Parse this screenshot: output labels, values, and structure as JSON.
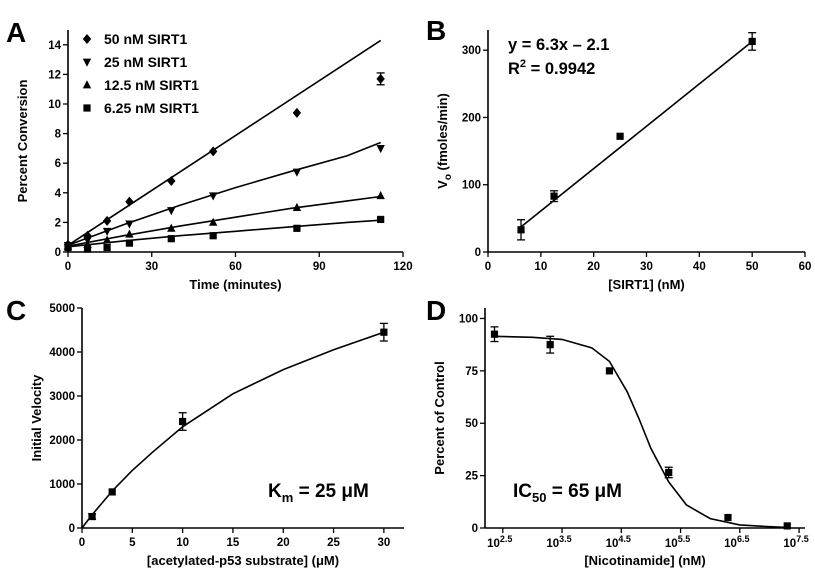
{
  "panels": {
    "A": {
      "label": "A"
    },
    "B": {
      "label": "B",
      "equation": "y = 6.3x – 2.1",
      "r2_prefix": "R",
      "r2_sup": "2",
      "r2_value": " = 0.9942"
    },
    "C": {
      "label": "C",
      "km_prefix": "K",
      "km_sub": "m",
      "km_value": " = 25 μM"
    },
    "D": {
      "label": "D",
      "ic_prefix": "IC",
      "ic_sub": "50",
      "ic_value": " = 65 μM"
    }
  },
  "chart_data": [
    {
      "panel": "A",
      "type": "scatter",
      "xlabel": "Time (minutes)",
      "ylabel": "Percent Conversion",
      "xlim": [
        0,
        120
      ],
      "ylim": [
        0,
        15
      ],
      "xticks": [
        0,
        30,
        60,
        90,
        120
      ],
      "yticks": [
        0,
        2,
        4,
        6,
        8,
        10,
        12,
        14
      ],
      "legend": "top-left",
      "series": [
        {
          "name": "50 nM SIRT1",
          "marker": "diamond",
          "fit": "linear",
          "points": [
            [
              0,
              0.5
            ],
            [
              7,
              1.1
            ],
            [
              14,
              2.1
            ],
            [
              22,
              3.4
            ],
            [
              37,
              4.8
            ],
            [
              52,
              6.8
            ],
            [
              82,
              9.4
            ],
            [
              112,
              11.7
            ]
          ],
          "errors": [
            0,
            0,
            0,
            0,
            0,
            0,
            0,
            0.4
          ],
          "fit_line": [
            [
              0,
              0.45
            ],
            [
              112,
              14.3
            ]
          ]
        },
        {
          "name": "25 nM SIRT1",
          "marker": "triangle-down",
          "fit": "curve",
          "points": [
            [
              0,
              0.45
            ],
            [
              7,
              0.8
            ],
            [
              14,
              1.4
            ],
            [
              22,
              1.9
            ],
            [
              37,
              2.8
            ],
            [
              52,
              3.8
            ],
            [
              82,
              5.4
            ],
            [
              112,
              7.0
            ]
          ],
          "errors": [
            0,
            0,
            0,
            0,
            0,
            0,
            0,
            0
          ],
          "fit_line": [
            [
              0,
              0.45
            ],
            [
              20,
              1.85
            ],
            [
              40,
              3.15
            ],
            [
              60,
              4.35
            ],
            [
              80,
              5.45
            ],
            [
              100,
              6.5
            ],
            [
              112,
              7.4
            ]
          ]
        },
        {
          "name": "12.5 nM SIRT1",
          "marker": "triangle-up",
          "fit": "curve",
          "points": [
            [
              0,
              0.4
            ],
            [
              7,
              0.5
            ],
            [
              14,
              0.8
            ],
            [
              22,
              1.2
            ],
            [
              37,
              1.6
            ],
            [
              52,
              2.0
            ],
            [
              82,
              3.0
            ],
            [
              112,
              3.8
            ]
          ],
          "errors": [
            0,
            0,
            0,
            0,
            0,
            0,
            0,
            0
          ],
          "fit_line": [
            [
              0,
              0.4
            ],
            [
              20,
              1.1
            ],
            [
              40,
              1.75
            ],
            [
              60,
              2.35
            ],
            [
              80,
              2.95
            ],
            [
              100,
              3.45
            ],
            [
              112,
              3.75
            ]
          ]
        },
        {
          "name": "6.25 nM SIRT1",
          "marker": "square",
          "fit": "curve",
          "points": [
            [
              0,
              0.3
            ],
            [
              7,
              0.2
            ],
            [
              14,
              0.3
            ],
            [
              22,
              0.6
            ],
            [
              37,
              0.9
            ],
            [
              52,
              1.1
            ],
            [
              82,
              1.6
            ],
            [
              112,
              2.2
            ]
          ],
          "errors": [
            0,
            0,
            0,
            0,
            0,
            0,
            0,
            0
          ],
          "fit_line": [
            [
              0,
              0.35
            ],
            [
              20,
              0.75
            ],
            [
              40,
              1.1
            ],
            [
              60,
              1.4
            ],
            [
              80,
              1.7
            ],
            [
              100,
              2.0
            ],
            [
              112,
              2.15
            ]
          ]
        }
      ]
    },
    {
      "panel": "B",
      "type": "scatter",
      "xlabel": "[SIRT1] (nM)",
      "ylabel": "Vₒ (fmoles/min)",
      "ylabel_main": "V",
      "ylabel_sub": "o",
      "ylabel_rest": " (fmoles/min)",
      "xlim": [
        0,
        60
      ],
      "ylim": [
        0,
        330
      ],
      "xticks": [
        0,
        10,
        20,
        30,
        40,
        50,
        60
      ],
      "yticks": [
        0,
        100,
        200,
        300
      ],
      "series": [
        {
          "name": "",
          "marker": "square",
          "fit": "linear",
          "points": [
            [
              6.25,
              33
            ],
            [
              12.5,
              83
            ],
            [
              25,
              172
            ],
            [
              50,
              313
            ]
          ],
          "errors": [
            15,
            8,
            0,
            13
          ],
          "fit_line": [
            [
              6.25,
              37.3
            ],
            [
              50,
              312.9
            ]
          ]
        }
      ]
    },
    {
      "panel": "C",
      "type": "scatter",
      "xlabel": "[acetylated-p53 substrate] (μM)",
      "ylabel": "Initial Velocity",
      "xlim": [
        0,
        32
      ],
      "ylim": [
        0,
        5000
      ],
      "xticks": [
        0,
        5,
        10,
        15,
        20,
        25,
        30
      ],
      "yticks": [
        0,
        1000,
        2000,
        3000,
        4000,
        5000
      ],
      "series": [
        {
          "name": "",
          "marker": "square",
          "fit": "michaelis-menten",
          "points": [
            [
              1,
              260
            ],
            [
              3,
              820
            ],
            [
              10,
              2420
            ],
            [
              30,
              4450
            ]
          ],
          "errors": [
            60,
            0,
            200,
            200
          ],
          "fit_line": [
            [
              0,
              0
            ],
            [
              1,
              300
            ],
            [
              3,
              840
            ],
            [
              5,
              1310
            ],
            [
              7,
              1720
            ],
            [
              10,
              2300
            ],
            [
              15,
              3050
            ],
            [
              20,
              3600
            ],
            [
              25,
              4050
            ],
            [
              30,
              4450
            ]
          ]
        }
      ]
    },
    {
      "panel": "D",
      "type": "scatter",
      "xlabel": "[Nicotinamide] (nM)",
      "ylabel": "Percent of Control",
      "xscale": "log10",
      "xlim_log": [
        2.2,
        7.6
      ],
      "ylim": [
        0,
        105
      ],
      "xtick_base": "10",
      "xtick_exponents": [
        "2.5",
        "3.5",
        "4.5",
        "5.5",
        "6.5",
        "7.5"
      ],
      "yticks": [
        0,
        25,
        50,
        75,
        100
      ],
      "series": [
        {
          "name": "",
          "marker": "square",
          "fit": "sigmoid",
          "points_log": [
            [
              2.36,
              92.5
            ],
            [
              3.3,
              87.5
            ],
            [
              4.3,
              75
            ],
            [
              5.3,
              26.5
            ],
            [
              6.3,
              5
            ],
            [
              7.3,
              1
            ]
          ],
          "errors": [
            3.5,
            4,
            0,
            2.5,
            0,
            0
          ],
          "fit_line_log": [
            [
              2.36,
              91.5
            ],
            [
              3.0,
              91
            ],
            [
              3.5,
              90
            ],
            [
              4.0,
              86
            ],
            [
              4.3,
              79.5
            ],
            [
              4.6,
              65
            ],
            [
              4.8,
              52
            ],
            [
              5.0,
              38
            ],
            [
              5.3,
              22
            ],
            [
              5.6,
              11
            ],
            [
              6.0,
              4.5
            ],
            [
              6.5,
              1.5
            ],
            [
              7.0,
              0.6
            ],
            [
              7.3,
              0.3
            ]
          ]
        }
      ]
    }
  ]
}
